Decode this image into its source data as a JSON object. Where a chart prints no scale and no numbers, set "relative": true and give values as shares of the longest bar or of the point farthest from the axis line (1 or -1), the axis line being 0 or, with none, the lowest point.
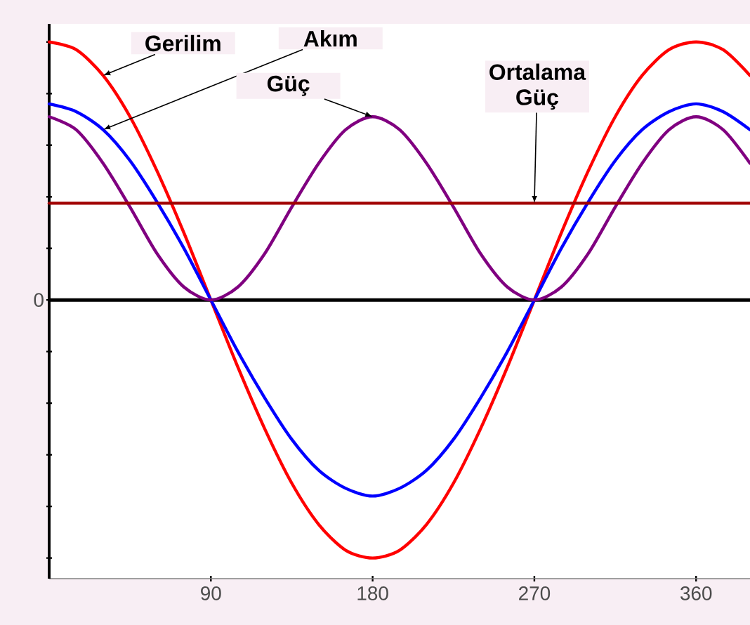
{
  "chart_data": {
    "type": "line",
    "relative": true,
    "x": [
      0,
      15,
      30,
      45,
      60,
      75,
      90,
      105,
      120,
      135,
      150,
      165,
      180,
      195,
      210,
      225,
      240,
      255,
      270,
      285,
      300,
      315,
      330,
      345,
      360,
      375,
      390
    ],
    "series": [
      {
        "color": "#ff0000",
        "values": [
          1,
          0.97,
          0.87,
          0.71,
          0.5,
          0.26,
          0,
          -0.26,
          -0.5,
          -0.71,
          -0.87,
          -0.97,
          -1,
          -0.97,
          -0.87,
          -0.71,
          -0.5,
          -0.26,
          0,
          0.26,
          0.5,
          0.71,
          0.87,
          0.97,
          1,
          0.97,
          0.87
        ]
      },
      {
        "color": "#0000ff",
        "values": [
          0.76,
          0.73,
          0.66,
          0.54,
          0.38,
          0.2,
          0,
          -0.2,
          -0.38,
          -0.54,
          -0.66,
          -0.73,
          -0.76,
          -0.73,
          -0.66,
          -0.54,
          -0.38,
          -0.2,
          0,
          0.2,
          0.38,
          0.54,
          0.66,
          0.73,
          0.76,
          0.73,
          0.66
        ]
      },
      {
        "color": "#800080",
        "values": [
          0.71,
          0.66,
          0.53,
          0.36,
          0.18,
          0.05,
          0,
          0.05,
          0.18,
          0.36,
          0.53,
          0.66,
          0.71,
          0.66,
          0.53,
          0.36,
          0.18,
          0.05,
          0,
          0.05,
          0.18,
          0.36,
          0.53,
          0.66,
          0.71,
          0.66,
          0.53
        ]
      },
      {
        "color": "#a00000",
        "x": [
          0,
          390
        ],
        "values": [
          0.375,
          0.375
        ]
      }
    ],
    "xlim": [
      0,
      390
    ],
    "xticks": [
      90,
      180,
      270,
      360
    ],
    "ref_lines": [
      {
        "axis": "y",
        "value": 0,
        "color": "#000000"
      }
    ],
    "annotations": [
      {
        "text": "Gerilim",
        "x": 30,
        "y": 0.87
      },
      {
        "text": "Akım",
        "x": 30,
        "y": 0.66
      },
      {
        "text": "Güç",
        "x": 180,
        "y": 0.71
      },
      {
        "text": "Ortalama Güç",
        "x": 270,
        "y": 0.375
      },
      "0"
    ],
    "line_style": "solid",
    "marker": "none"
  }
}
